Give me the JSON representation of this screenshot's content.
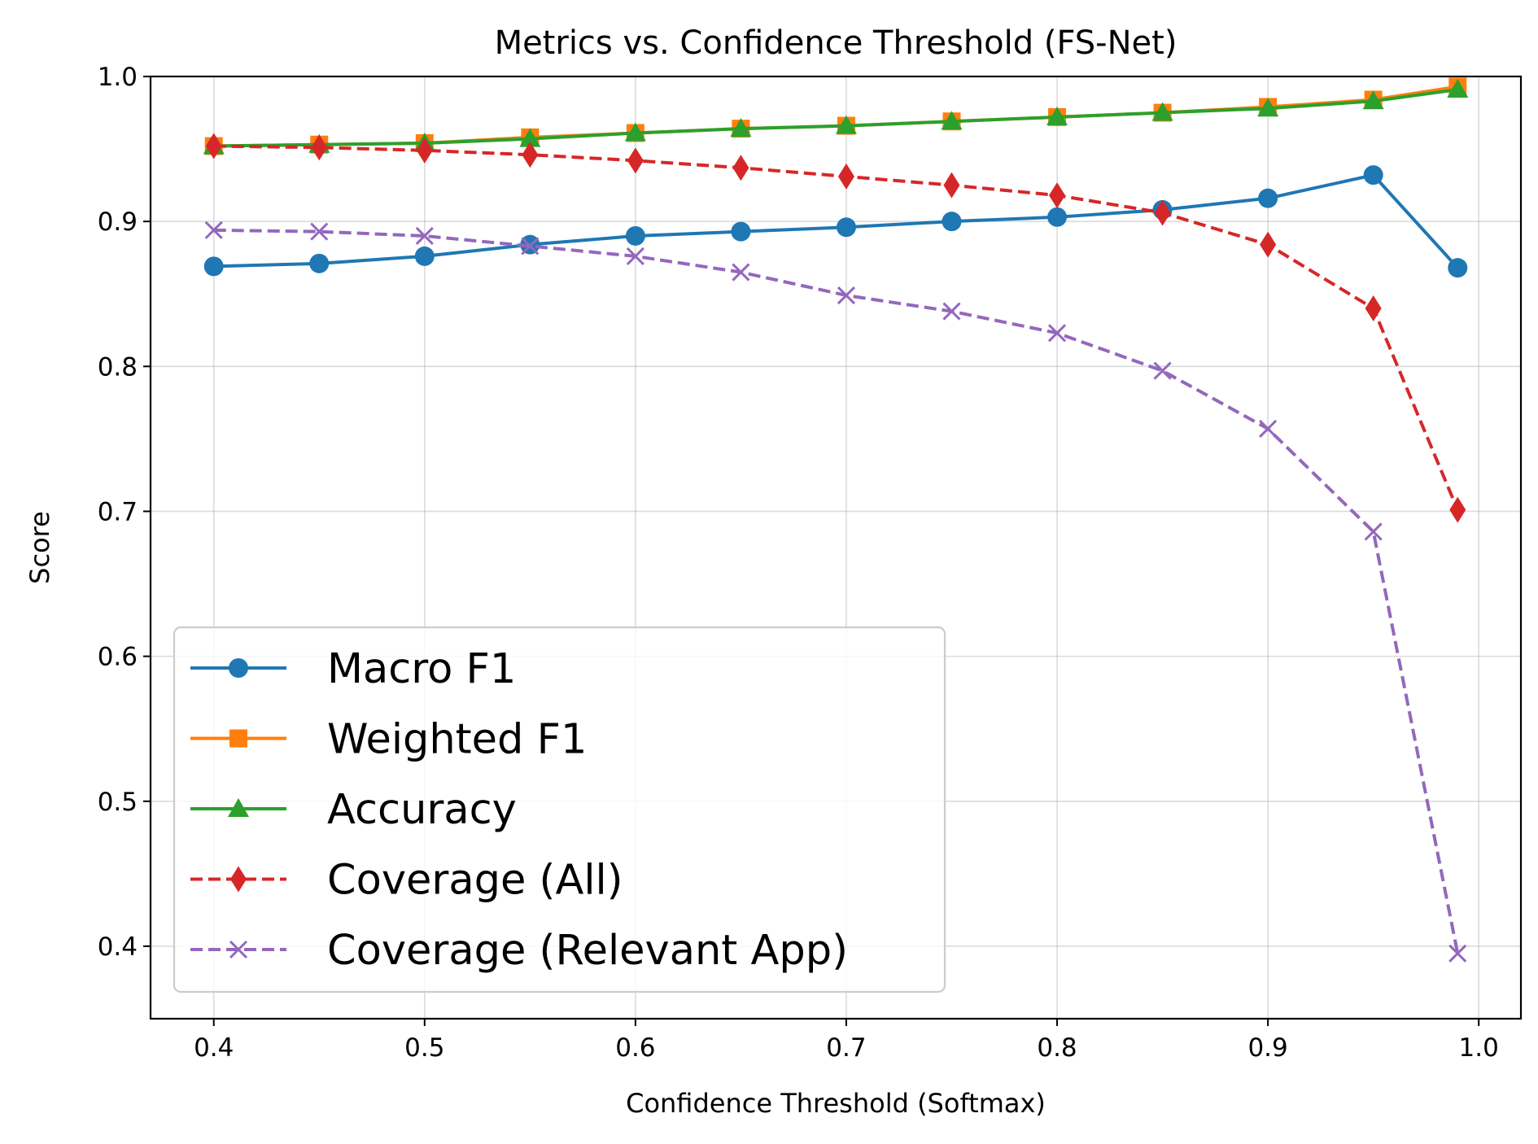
{
  "chart_data": {
    "type": "line",
    "title": "Metrics vs. Confidence Threshold (FS-Net)",
    "xlabel": "Confidence Threshold (Softmax)",
    "ylabel": "Score",
    "xlim": [
      0.37,
      1.02
    ],
    "ylim": [
      0.35,
      1.0
    ],
    "x_ticks": [
      "0.4",
      "0.5",
      "0.6",
      "0.7",
      "0.8",
      "0.9",
      "1.0"
    ],
    "y_ticks": [
      "0.4",
      "0.5",
      "0.6",
      "0.7",
      "0.8",
      "0.9",
      "1.0"
    ],
    "grid": true,
    "legend_position": "lower-left",
    "x": [
      0.4,
      0.45,
      0.5,
      0.55,
      0.6,
      0.65,
      0.7,
      0.75,
      0.8,
      0.85,
      0.9,
      0.95,
      0.99
    ],
    "series": [
      {
        "name": "Macro F1",
        "color": "#1f77b4",
        "line_style": "solid",
        "marker": "circle",
        "values": [
          0.869,
          0.871,
          0.876,
          0.884,
          0.89,
          0.893,
          0.896,
          0.9,
          0.903,
          0.908,
          0.916,
          0.932,
          0.868
        ]
      },
      {
        "name": "Weighted F1",
        "color": "#ff7f0e",
        "line_style": "solid",
        "marker": "square",
        "values": [
          0.952,
          0.953,
          0.954,
          0.958,
          0.961,
          0.964,
          0.966,
          0.969,
          0.972,
          0.975,
          0.979,
          0.984,
          0.993
        ]
      },
      {
        "name": "Accuracy",
        "color": "#2ca02c",
        "line_style": "solid",
        "marker": "triangle",
        "values": [
          0.952,
          0.953,
          0.954,
          0.957,
          0.961,
          0.964,
          0.966,
          0.969,
          0.972,
          0.975,
          0.978,
          0.983,
          0.991
        ]
      },
      {
        "name": "Coverage (All)",
        "color": "#d62728",
        "line_style": "dashed",
        "marker": "diamond",
        "values": [
          0.952,
          0.951,
          0.949,
          0.946,
          0.942,
          0.937,
          0.931,
          0.925,
          0.918,
          0.906,
          0.884,
          0.84,
          0.701
        ]
      },
      {
        "name": "Coverage (Relevant App)",
        "color": "#9467bd",
        "line_style": "dashed",
        "marker": "x",
        "values": [
          0.894,
          0.893,
          0.89,
          0.883,
          0.876,
          0.865,
          0.849,
          0.838,
          0.823,
          0.797,
          0.757,
          0.686,
          0.395
        ]
      }
    ]
  }
}
